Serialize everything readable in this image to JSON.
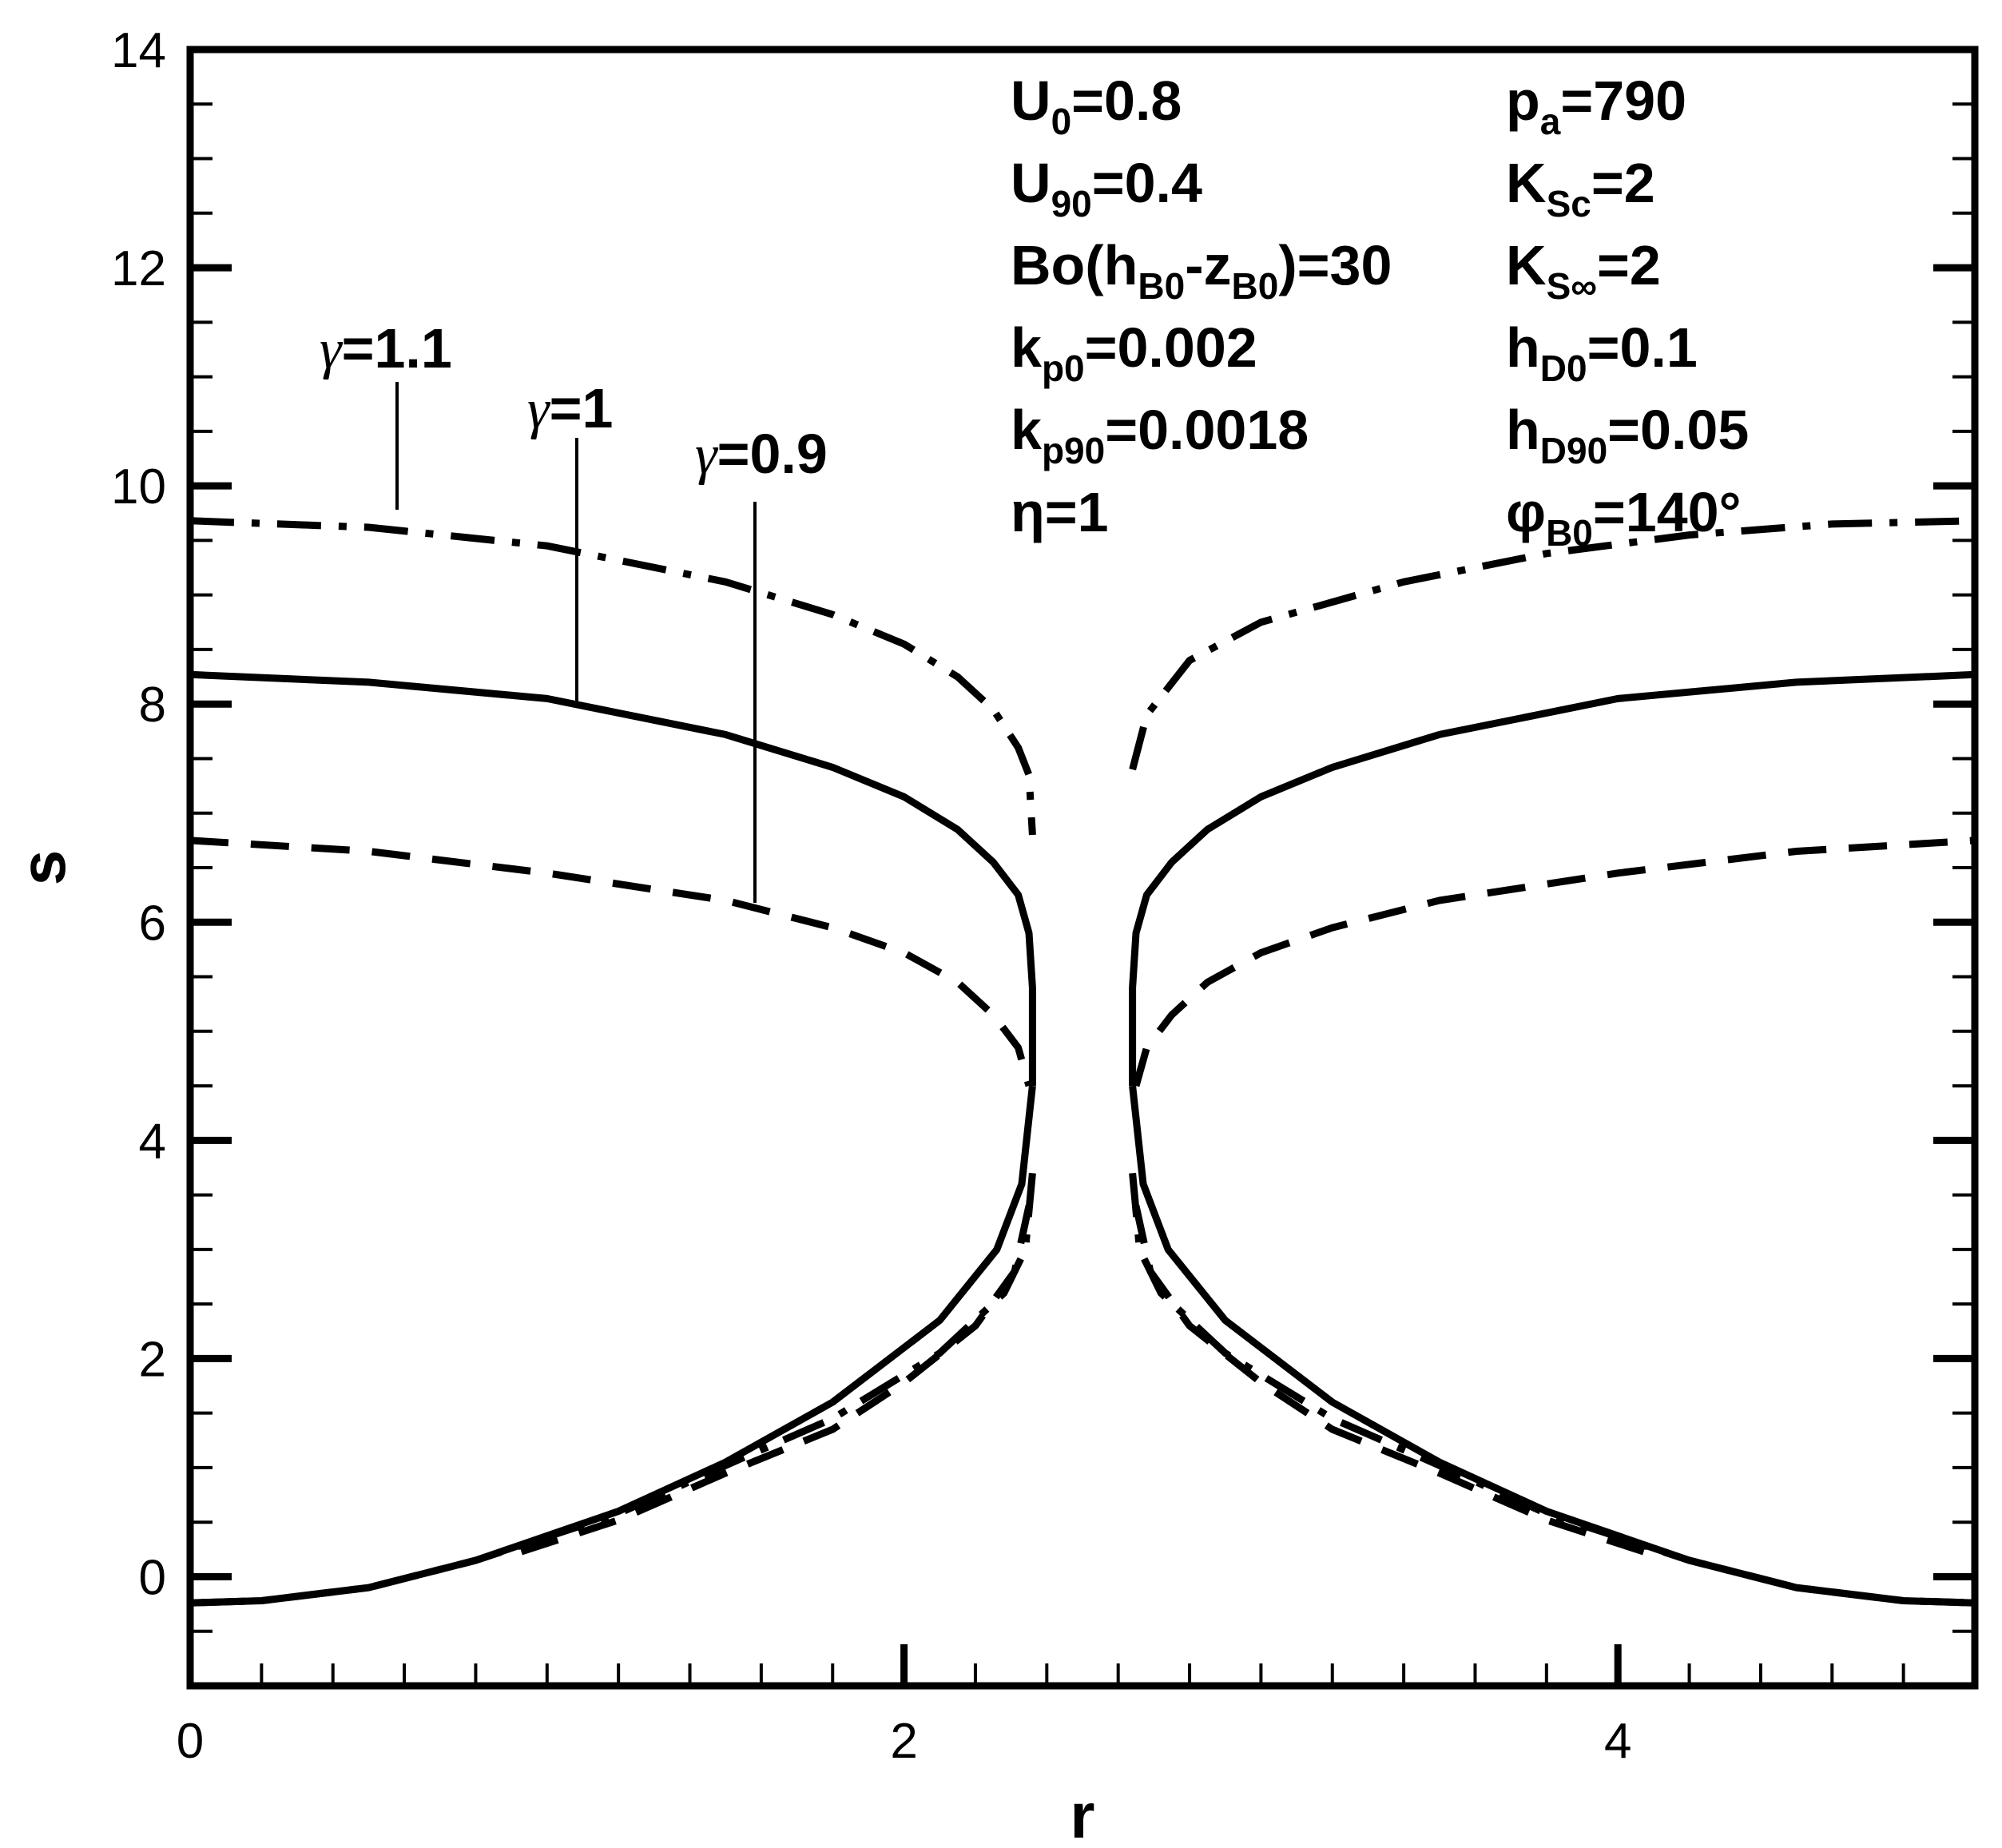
{
  "chart_data": {
    "type": "line",
    "xlabel": "r",
    "ylabel": "s",
    "xlim": [
      0,
      5.0
    ],
    "ylim": [
      -1,
      14
    ],
    "x_ticks": [
      "0",
      "2",
      "4"
    ],
    "y_ticks": [
      "0",
      "2",
      "4",
      "6",
      "8",
      "10",
      "12",
      "14"
    ],
    "grid": false,
    "legend": "none",
    "parameters_left": [
      {
        "base": "U",
        "sub": "0",
        "rest": "=0.8"
      },
      {
        "base": "U",
        "sub": "90",
        "rest": "=0.4"
      },
      {
        "base": "Bo(h",
        "sub": "B0",
        "mid": "-z",
        "sub2": "B0",
        "rest": ")=30"
      },
      {
        "base": "k",
        "sub": "p0",
        "rest": "=0.002"
      },
      {
        "base": "k",
        "sub": "p90",
        "rest": "=0.0018"
      },
      {
        "base": "η",
        "sub": "",
        "rest": "=1"
      }
    ],
    "parameters_right": [
      {
        "base": "p",
        "sub": "a",
        "rest": "=790"
      },
      {
        "base": "K",
        "sub": "Sc",
        "rest": "=2"
      },
      {
        "base": "K",
        "sub": "S∞",
        "rest": "=2"
      },
      {
        "base": "h",
        "sub": "D0",
        "rest": "=0.1"
      },
      {
        "base": "h",
        "sub": "D90",
        "rest": "=0.05"
      },
      {
        "base": "φ",
        "sub": "B0",
        "rest": "=140°"
      }
    ],
    "annotations": [
      {
        "symbol": "γ",
        "value": "=1.1",
        "series": 0
      },
      {
        "symbol": "γ",
        "value": "=1",
        "series": 1
      },
      {
        "symbol": "γ",
        "value": "=0.9",
        "series": 2
      }
    ],
    "series": [
      {
        "gamma": 1.1,
        "line_style": "dash-dot",
        "upper_left": [
          [
            0,
            9.68
          ],
          [
            0.5,
            9.62
          ],
          [
            1.0,
            9.45
          ],
          [
            1.5,
            9.12
          ],
          [
            1.8,
            8.82
          ],
          [
            2.0,
            8.55
          ],
          [
            2.15,
            8.25
          ],
          [
            2.25,
            7.95
          ],
          [
            2.32,
            7.6
          ],
          [
            2.35,
            7.35
          ],
          [
            2.36,
            6.8
          ]
        ],
        "upper_right": [
          [
            2.64,
            7.4
          ],
          [
            2.68,
            7.9
          ],
          [
            2.8,
            8.4
          ],
          [
            3.0,
            8.75
          ],
          [
            3.4,
            9.12
          ],
          [
            3.8,
            9.38
          ],
          [
            4.2,
            9.55
          ],
          [
            4.6,
            9.65
          ],
          [
            5.0,
            9.68
          ]
        ],
        "lower_left": [
          [
            2.36,
            3.7
          ],
          [
            2.34,
            3.0
          ],
          [
            2.28,
            2.6
          ],
          [
            2.1,
            2.05
          ],
          [
            1.8,
            1.45
          ],
          [
            1.5,
            1.02
          ],
          [
            1.2,
            0.58
          ],
          [
            0.8,
            0.15
          ],
          [
            0.5,
            -0.1
          ],
          [
            0.2,
            -0.22
          ],
          [
            0,
            -0.24
          ]
        ],
        "lower_right": [
          [
            2.64,
            3.7
          ],
          [
            2.66,
            3.0
          ],
          [
            2.72,
            2.6
          ],
          [
            2.9,
            2.05
          ],
          [
            3.2,
            1.45
          ],
          [
            3.5,
            1.02
          ],
          [
            3.8,
            0.58
          ],
          [
            4.2,
            0.15
          ],
          [
            4.5,
            -0.1
          ],
          [
            4.8,
            -0.22
          ],
          [
            5.0,
            -0.24
          ]
        ]
      },
      {
        "gamma": 1.0,
        "line_style": "solid",
        "upper_left": [
          [
            0,
            8.27
          ],
          [
            0.5,
            8.2
          ],
          [
            1.0,
            8.05
          ],
          [
            1.5,
            7.72
          ],
          [
            1.8,
            7.42
          ],
          [
            2.0,
            7.15
          ],
          [
            2.15,
            6.85
          ],
          [
            2.25,
            6.55
          ],
          [
            2.32,
            6.25
          ],
          [
            2.35,
            5.9
          ],
          [
            2.36,
            5.4
          ],
          [
            2.36,
            4.5
          ]
        ],
        "upper_right": [
          [
            2.64,
            4.5
          ],
          [
            2.64,
            5.4
          ],
          [
            2.65,
            5.9
          ],
          [
            2.68,
            6.25
          ],
          [
            2.75,
            6.55
          ],
          [
            2.85,
            6.85
          ],
          [
            3.0,
            7.15
          ],
          [
            3.2,
            7.42
          ],
          [
            3.5,
            7.72
          ],
          [
            4.0,
            8.05
          ],
          [
            4.5,
            8.2
          ],
          [
            5.0,
            8.27
          ]
        ],
        "lower_left": [
          [
            2.36,
            4.5
          ],
          [
            2.33,
            3.6
          ],
          [
            2.26,
            3.0
          ],
          [
            2.1,
            2.35
          ],
          [
            1.8,
            1.6
          ],
          [
            1.5,
            1.05
          ],
          [
            1.2,
            0.6
          ],
          [
            0.8,
            0.15
          ],
          [
            0.5,
            -0.1
          ],
          [
            0.2,
            -0.22
          ],
          [
            0,
            -0.24
          ]
        ],
        "lower_right": [
          [
            2.64,
            4.5
          ],
          [
            2.67,
            3.6
          ],
          [
            2.74,
            3.0
          ],
          [
            2.9,
            2.35
          ],
          [
            3.2,
            1.6
          ],
          [
            3.5,
            1.05
          ],
          [
            3.8,
            0.6
          ],
          [
            4.2,
            0.15
          ],
          [
            4.5,
            -0.1
          ],
          [
            4.8,
            -0.22
          ],
          [
            5.0,
            -0.24
          ]
        ]
      },
      {
        "gamma": 0.9,
        "line_style": "dashed",
        "upper_left": [
          [
            0,
            6.75
          ],
          [
            0.5,
            6.65
          ],
          [
            1.0,
            6.45
          ],
          [
            1.5,
            6.2
          ],
          [
            1.8,
            5.95
          ],
          [
            2.0,
            5.72
          ],
          [
            2.15,
            5.45
          ],
          [
            2.25,
            5.15
          ],
          [
            2.32,
            4.85
          ],
          [
            2.35,
            4.5
          ]
        ],
        "upper_right": [
          [
            2.65,
            4.5
          ],
          [
            2.68,
            4.85
          ],
          [
            2.75,
            5.15
          ],
          [
            2.85,
            5.45
          ],
          [
            3.0,
            5.72
          ],
          [
            3.2,
            5.95
          ],
          [
            3.5,
            6.2
          ],
          [
            4.0,
            6.45
          ],
          [
            4.5,
            6.65
          ],
          [
            5.0,
            6.75
          ]
        ],
        "lower_left": [
          [
            2.35,
            3.4
          ],
          [
            2.31,
            2.8
          ],
          [
            2.2,
            2.3
          ],
          [
            2.0,
            1.78
          ],
          [
            1.8,
            1.35
          ],
          [
            1.5,
            0.95
          ],
          [
            1.2,
            0.52
          ],
          [
            0.9,
            0.2
          ]
        ],
        "lower_right": [
          [
            2.65,
            3.4
          ],
          [
            2.69,
            2.8
          ],
          [
            2.8,
            2.3
          ],
          [
            3.0,
            1.78
          ],
          [
            3.2,
            1.35
          ],
          [
            3.5,
            0.95
          ],
          [
            3.8,
            0.52
          ],
          [
            4.1,
            0.2
          ]
        ]
      }
    ]
  }
}
